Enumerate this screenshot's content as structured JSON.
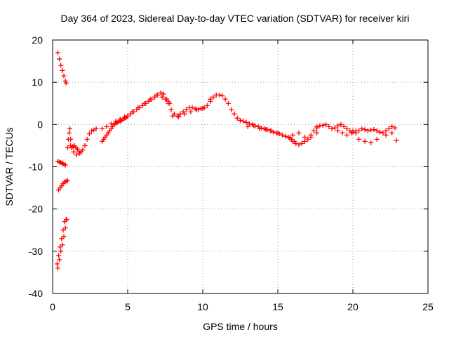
{
  "chart_data": {
    "type": "scatter",
    "title": "Day 364 of 2023, Sidereal Day-to-day VTEC variation (SDTVAR) for receiver kiri",
    "xlabel": "GPS time / hours",
    "ylabel": "SDTVAR / TECUs",
    "xlim": [
      0,
      25
    ],
    "ylim": [
      -40,
      20
    ],
    "xticks": [
      0,
      5,
      10,
      15,
      20,
      25
    ],
    "yticks": [
      -40,
      -30,
      -20,
      -10,
      0,
      10,
      20
    ],
    "grid": true,
    "marker": "+",
    "colors": {
      "series": "#ff0000",
      "grid": "#a0a0a0",
      "axis": "#000000"
    },
    "series": [
      {
        "name": "SDTVAR",
        "x": [
          0.35,
          0.45,
          0.55,
          0.65,
          0.75,
          0.85,
          0.9,
          0.35,
          0.45,
          0.55,
          0.65,
          0.75,
          0.85,
          0.35,
          0.45,
          0.55,
          0.65,
          0.75,
          0.85,
          0.95,
          0.4,
          0.5,
          0.6,
          0.7,
          0.8,
          0.9,
          1.0,
          0.3,
          0.4,
          0.5,
          0.6,
          0.7,
          0.8,
          0.9,
          1.0,
          1.05,
          1.1,
          1.15,
          1.2,
          1.25,
          1.35,
          1.45,
          1.55,
          1.65,
          1.75,
          1.9,
          2.0,
          2.15,
          2.3,
          2.45,
          2.6,
          2.75,
          2.9,
          1.2,
          1.4,
          1.6,
          1.8,
          3.3,
          3.4,
          3.5,
          3.6,
          3.7,
          3.8,
          3.9,
          4.0,
          4.1,
          4.2,
          4.3,
          4.4,
          4.5,
          4.6,
          4.7,
          4.8,
          4.9,
          5.0,
          3.3,
          3.6,
          3.9,
          4.2,
          4.5,
          4.8,
          5.0,
          5.2,
          5.4,
          5.6,
          5.8,
          6.0,
          6.2,
          6.4,
          6.6,
          6.8,
          7.0,
          7.2,
          7.4,
          7.6,
          7.8,
          5.3,
          5.7,
          6.1,
          6.5,
          6.9,
          7.3,
          7.7,
          7.5,
          7.7,
          7.9,
          8.1,
          8.3,
          8.5,
          8.7,
          8.9,
          9.1,
          9.3,
          9.5,
          9.7,
          9.9,
          10.1,
          10.3,
          10.5,
          8.0,
          8.4,
          8.8,
          9.2,
          9.6,
          10.0,
          10.5,
          10.7,
          10.9,
          11.1,
          11.3,
          11.5,
          11.7,
          11.9,
          12.1,
          12.3,
          12.5,
          12.7,
          12.9,
          13.1,
          13.3,
          13.5,
          13.7,
          13.9,
          14.1,
          14.3,
          14.5,
          14.7,
          14.9,
          15.1,
          15.3,
          15.5,
          15.7,
          15.9,
          16.1,
          13.0,
          13.4,
          13.8,
          14.2,
          14.6,
          15.0,
          15.8,
          16.0,
          16.2,
          16.4,
          16.6,
          16.8,
          17.0,
          17.2,
          17.4,
          17.6,
          16.0,
          16.4,
          16.8,
          17.2,
          17.6,
          17.6,
          17.8,
          18.0,
          18.2,
          18.4,
          18.6,
          18.8,
          19.0,
          19.2,
          19.4,
          19.6,
          19.8,
          20.0,
          19.0,
          19.3,
          19.6,
          19.9,
          20.2,
          20.0,
          20.2,
          20.4,
          20.6,
          20.8,
          21.0,
          21.2,
          21.4,
          21.6,
          21.8,
          22.0,
          22.2,
          22.4,
          22.6,
          22.8,
          20.4,
          20.8,
          21.2,
          21.6,
          22.2,
          22.6,
          22.9
        ],
        "y": [
          17,
          15.5,
          14,
          12.8,
          11.5,
          10.3,
          9.8,
          -8.7,
          -8.9,
          -9.0,
          -9.2,
          -9.4,
          -9.6,
          -34,
          -32,
          -30,
          -28.5,
          -26.5,
          -24.5,
          -22.5,
          -15.5,
          -15,
          -14.5,
          -14,
          -13.6,
          -13.4,
          -13.3,
          -33,
          -31,
          -29,
          -27,
          -25,
          -23,
          -22.5,
          -5.5,
          -3.5,
          -2,
          -1,
          -3.5,
          -5.5,
          -5.2,
          -5.0,
          -5.5,
          -5.8,
          -6.3,
          -6.5,
          -6.0,
          -5.0,
          -3.5,
          -2.2,
          -1.5,
          -1.3,
          -1.0,
          -5,
          -6.5,
          -7.2,
          -6.8,
          -4,
          -3.5,
          -3,
          -2.5,
          -2,
          -1.5,
          -1,
          -0.5,
          0,
          0.3,
          0.5,
          0.7,
          0.8,
          1.0,
          1.3,
          1.5,
          1.6,
          2.0,
          -1,
          -0.5,
          0.2,
          0.8,
          1.3,
          1.8,
          2.0,
          2.5,
          3.0,
          3.5,
          4.0,
          4.5,
          5.0,
          5.5,
          6.0,
          6.5,
          7.0,
          7.5,
          7.2,
          6.0,
          5.0,
          3.0,
          4.0,
          5.0,
          6.0,
          7.0,
          6.5,
          5.5,
          6.0,
          5.0,
          3.5,
          2.5,
          2.0,
          2.5,
          3.0,
          3.5,
          4.0,
          4.0,
          3.7,
          3.5,
          3.8,
          4.0,
          4.5,
          5.5,
          2.0,
          1.8,
          2.5,
          3.0,
          3.5,
          3.8,
          6.0,
          6.5,
          7.0,
          7.0,
          6.8,
          6.0,
          5.0,
          3.5,
          2.5,
          1.5,
          1.0,
          0.8,
          0.5,
          0.2,
          0,
          -0.3,
          -0.5,
          -0.8,
          -1.0,
          -1.2,
          -1.5,
          -1.8,
          -2.0,
          -2.2,
          -2.5,
          -2.8,
          -3.0,
          -3.5,
          -4.0,
          -0.5,
          -0.3,
          -1.0,
          -1.2,
          -1.5,
          -2.0,
          -3.2,
          -4.0,
          -4.5,
          -4.8,
          -4.5,
          -4.0,
          -3.5,
          -2.5,
          -1.5,
          -0.8,
          -2.5,
          -2.0,
          -3.0,
          -3.0,
          -2.0,
          -0.5,
          -0.3,
          -0.2,
          0,
          -0.5,
          -1.0,
          -0.8,
          -0.3,
          0,
          -0.5,
          -1.0,
          -1.5,
          -1.8,
          -1.5,
          -2.0,
          -2.5,
          -2.0,
          -1.5,
          -1.5,
          -2.0,
          -1.5,
          -1.0,
          -1.2,
          -1.5,
          -1.3,
          -1.2,
          -1.5,
          -1.8,
          -2.0,
          -1.5,
          -1.0,
          -0.5,
          -0.8,
          -3.5,
          -4.0,
          -4.3,
          -3.5,
          -2.5,
          -2.0,
          -3.8
        ]
      }
    ]
  }
}
